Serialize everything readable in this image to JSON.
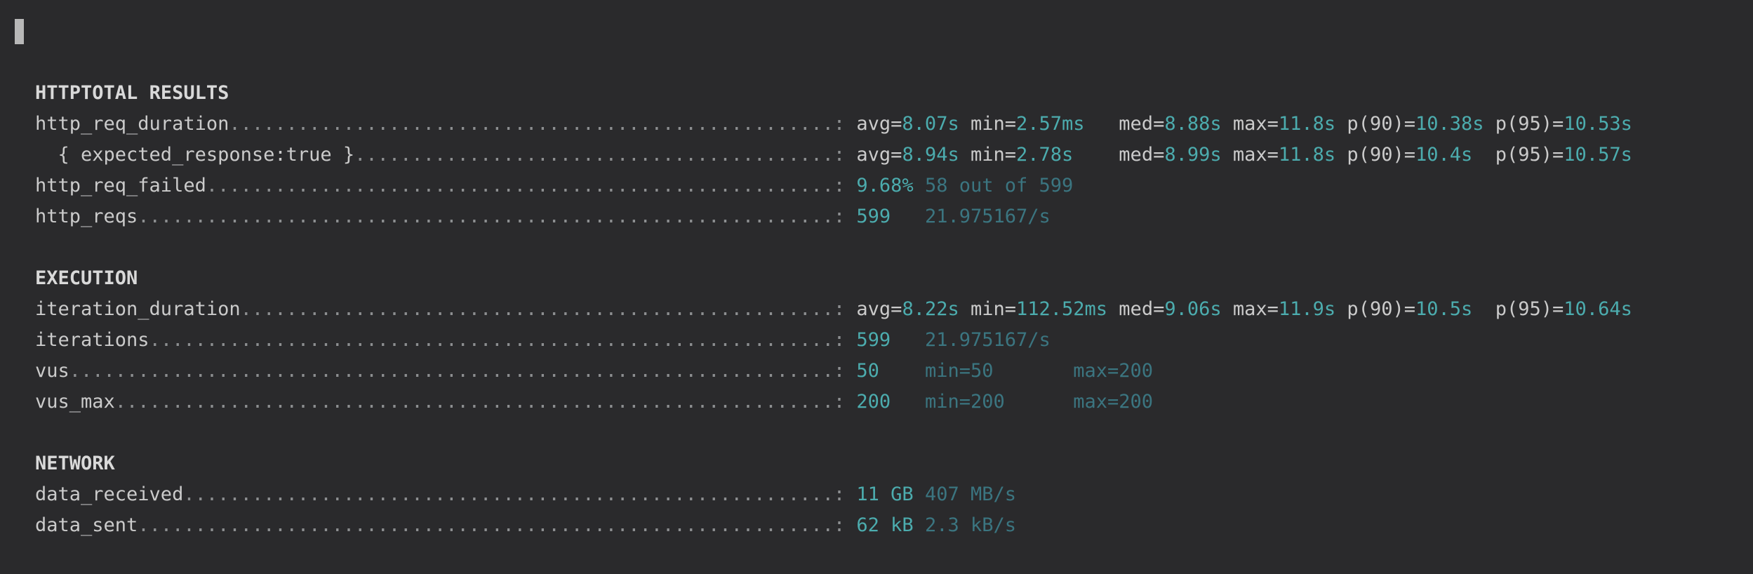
{
  "title": "TOTAL RESULTS",
  "leader": {
    "char": ".",
    "colon_column": 70,
    "separator": ": "
  },
  "colors": {
    "background": "#2a2a2c",
    "text": "#cbcbcb",
    "dots": "#8d8f91",
    "heading": "#d9d9d9",
    "value": "#4cacae",
    "value_muted": "#3b7580",
    "marker": "#b8b8b8"
  },
  "sections": [
    {
      "heading": "HTTP",
      "rows": [
        {
          "label": "http_req_duration",
          "indent": 0,
          "segments": [
            [
              "plain",
              "avg="
            ],
            [
              "value",
              "8.07s"
            ],
            [
              "plain",
              " min="
            ],
            [
              "value",
              "2.57ms"
            ],
            [
              "plain",
              "   med="
            ],
            [
              "value",
              "8.88s"
            ],
            [
              "plain",
              " max="
            ],
            [
              "value",
              "11.8s"
            ],
            [
              "plain",
              " p(90)="
            ],
            [
              "value",
              "10.38s"
            ],
            [
              "plain",
              " p(95)="
            ],
            [
              "value",
              "10.53s"
            ]
          ]
        },
        {
          "label": "{ expected_response:true }",
          "indent": 2,
          "segments": [
            [
              "plain",
              "avg="
            ],
            [
              "value",
              "8.94s"
            ],
            [
              "plain",
              " min="
            ],
            [
              "value",
              "2.78s"
            ],
            [
              "plain",
              "    med="
            ],
            [
              "value",
              "8.99s"
            ],
            [
              "plain",
              " max="
            ],
            [
              "value",
              "11.8s"
            ],
            [
              "plain",
              " p(90)="
            ],
            [
              "value",
              "10.4s"
            ],
            [
              "plain",
              "  p(95)="
            ],
            [
              "value",
              "10.57s"
            ]
          ]
        },
        {
          "label": "http_req_failed",
          "indent": 0,
          "segments": [
            [
              "value",
              "9.68%"
            ],
            [
              "muted",
              " 58 out of 599"
            ]
          ]
        },
        {
          "label": "http_reqs",
          "indent": 0,
          "segments": [
            [
              "value",
              "599"
            ],
            [
              "muted",
              "   21.975167/s"
            ]
          ]
        }
      ]
    },
    {
      "heading": "EXECUTION",
      "rows": [
        {
          "label": "iteration_duration",
          "indent": 0,
          "segments": [
            [
              "plain",
              "avg="
            ],
            [
              "value",
              "8.22s"
            ],
            [
              "plain",
              " min="
            ],
            [
              "value",
              "112.52ms"
            ],
            [
              "plain",
              " med="
            ],
            [
              "value",
              "9.06s"
            ],
            [
              "plain",
              " max="
            ],
            [
              "value",
              "11.9s"
            ],
            [
              "plain",
              " p(90)="
            ],
            [
              "value",
              "10.5s"
            ],
            [
              "plain",
              "  p(95)="
            ],
            [
              "value",
              "10.64s"
            ]
          ]
        },
        {
          "label": "iterations",
          "indent": 0,
          "segments": [
            [
              "value",
              "599"
            ],
            [
              "muted",
              "   21.975167/s"
            ]
          ]
        },
        {
          "label": "vus",
          "indent": 0,
          "segments": [
            [
              "value",
              "50"
            ],
            [
              "muted",
              "    min=50       max=200"
            ]
          ]
        },
        {
          "label": "vus_max",
          "indent": 0,
          "segments": [
            [
              "value",
              "200"
            ],
            [
              "muted",
              "   min=200      max=200"
            ]
          ]
        }
      ]
    },
    {
      "heading": "NETWORK",
      "rows": [
        {
          "label": "data_received",
          "indent": 0,
          "segments": [
            [
              "value",
              "11 GB"
            ],
            [
              "muted",
              " 407 MB/s"
            ]
          ]
        },
        {
          "label": "data_sent",
          "indent": 0,
          "segments": [
            [
              "value",
              "62 kB"
            ],
            [
              "muted",
              " 2.3 kB/s"
            ]
          ]
        }
      ]
    }
  ]
}
